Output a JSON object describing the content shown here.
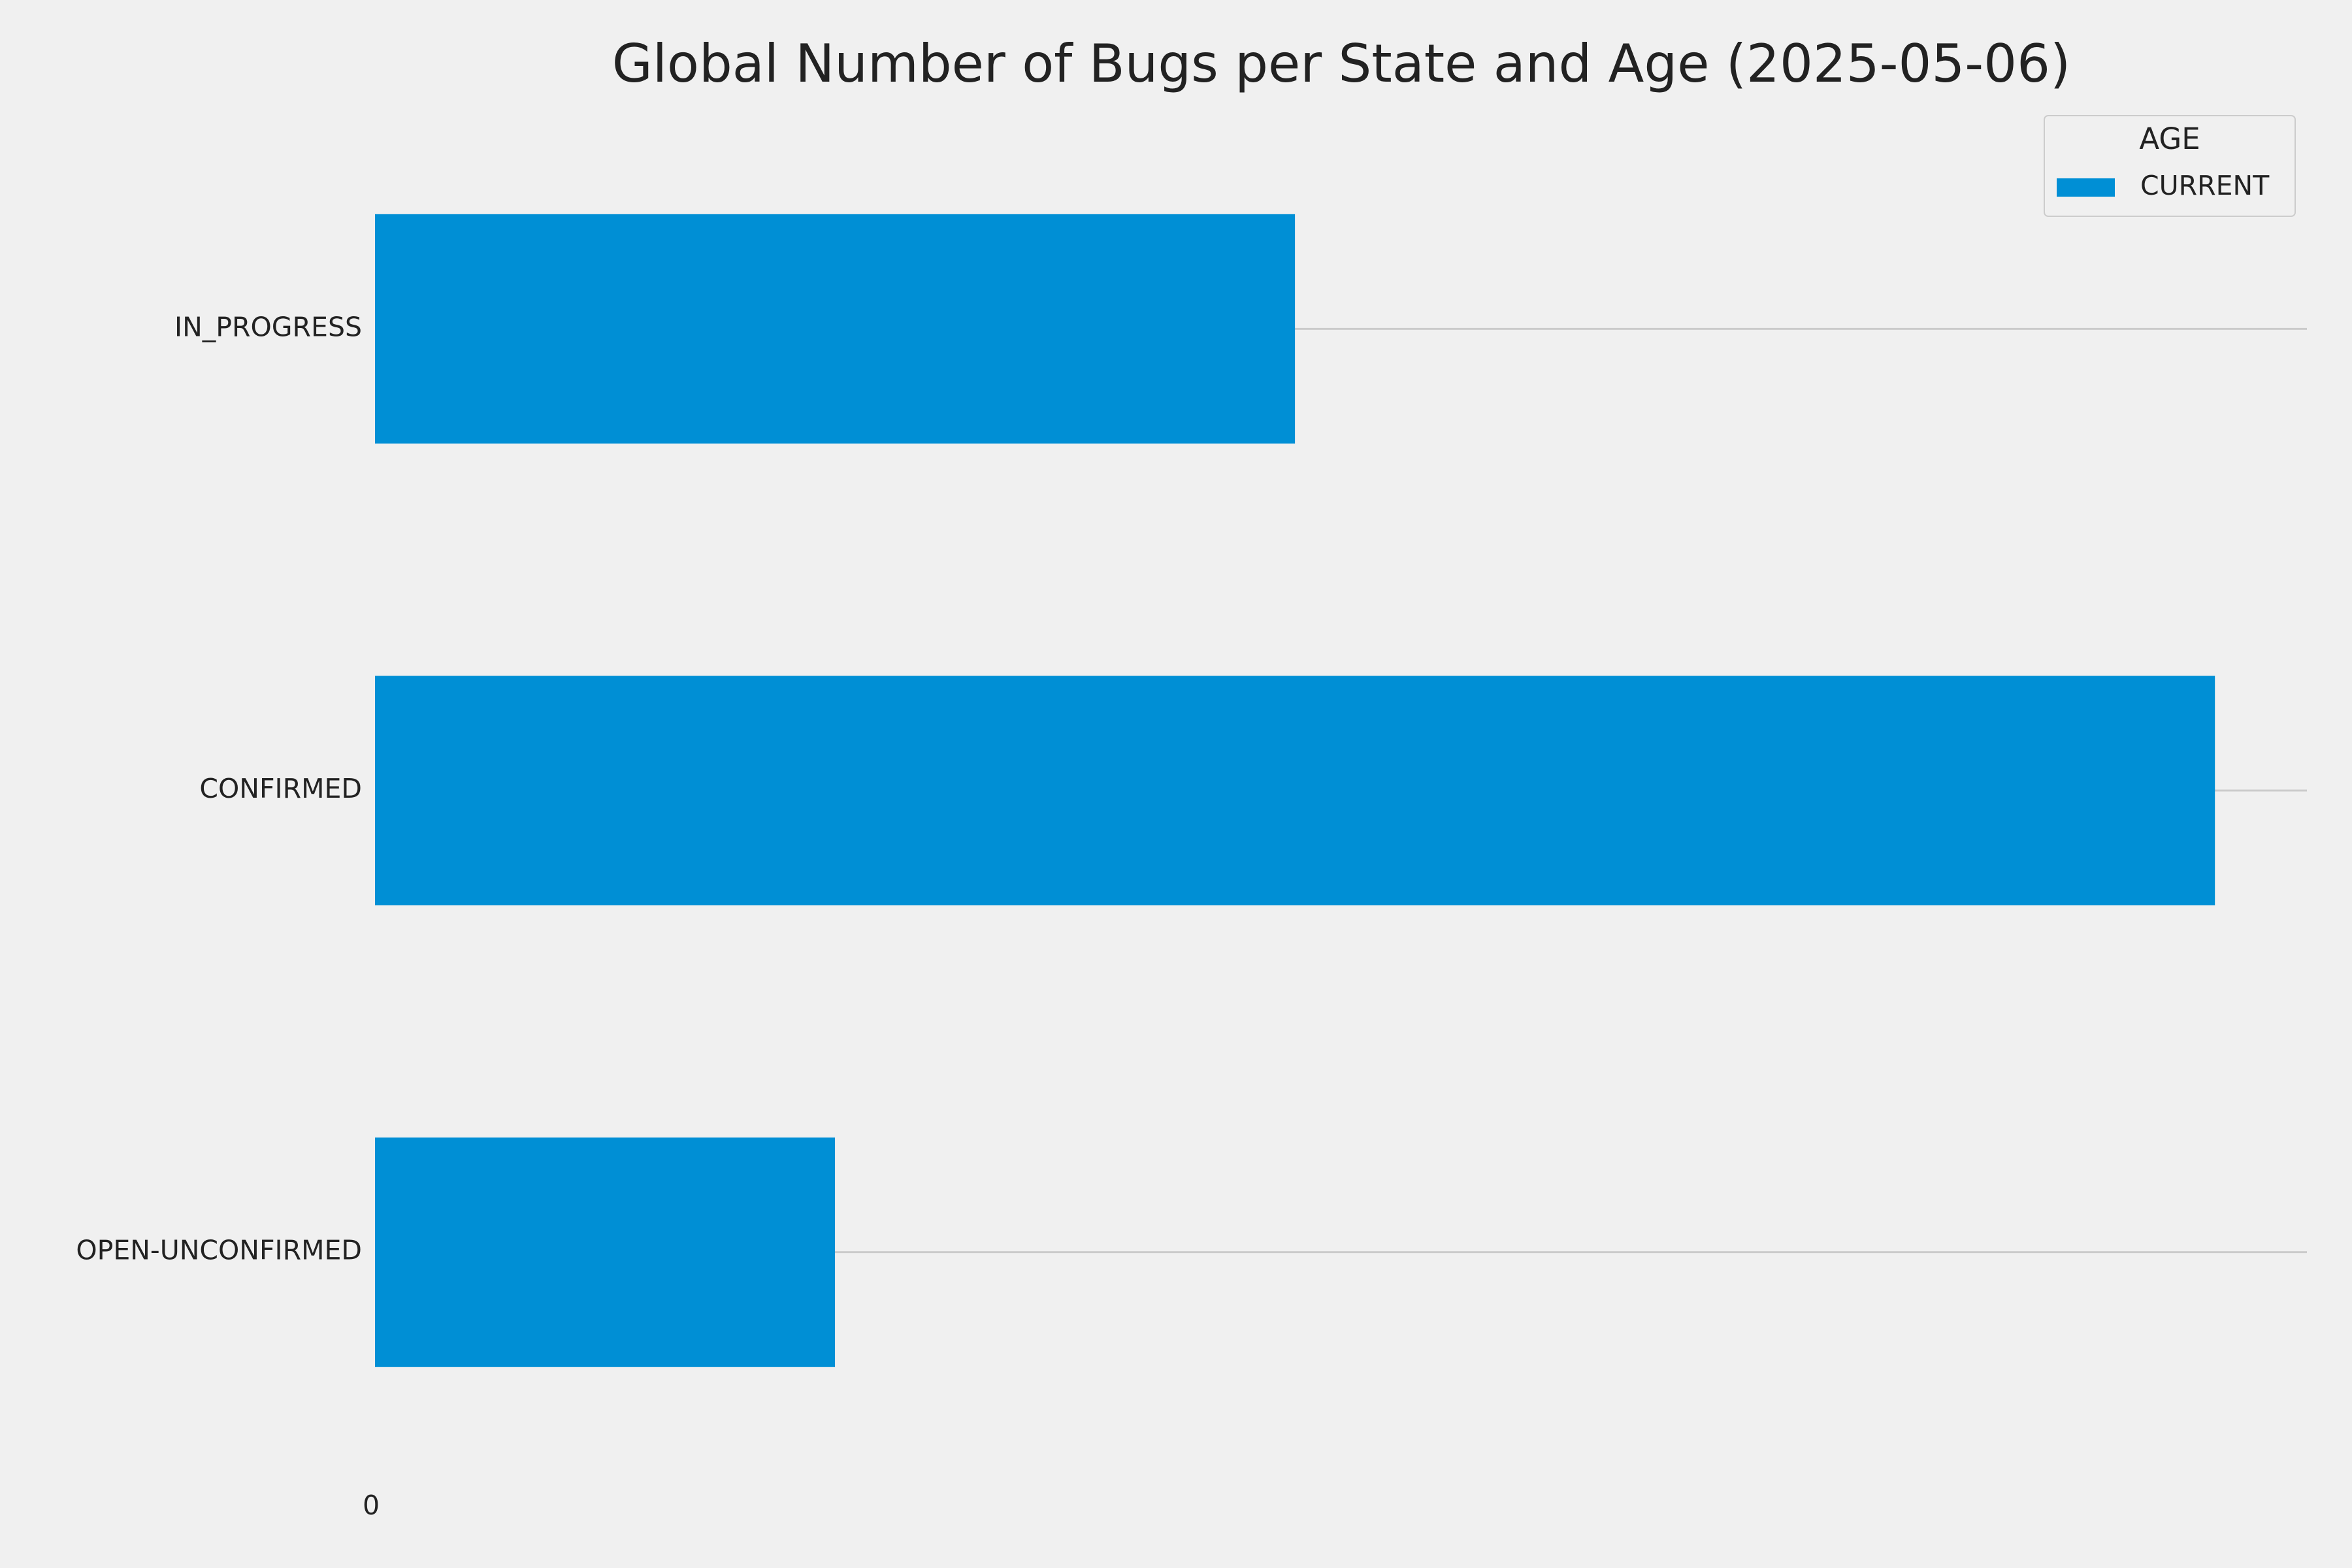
{
  "chart_data": {
    "type": "barh",
    "title": "Global Number of Bugs per State and Age (2025-05-06)",
    "categories": [
      "OPEN-UNCONFIRMED",
      "CONFIRMED",
      "IN_PROGRESS"
    ],
    "series": [
      {
        "name": "CURRENT",
        "color": "#008fd5",
        "values": [
          25,
          100,
          50
        ]
      }
    ],
    "legend_title": "AGE",
    "legend": "upper right",
    "xlim": [
      0,
      105
    ],
    "xticks": [
      0
    ],
    "grid": true
  }
}
